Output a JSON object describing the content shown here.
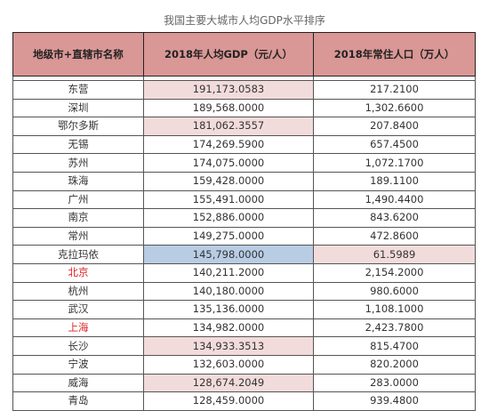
{
  "title": "我国主要大城市人均GDP水平排序",
  "headers": [
    "地级市+直辖市名称",
    "2018年人均GDP（元/人）",
    "2018年常住人口（万人）"
  ],
  "colors": {
    "header_bg": "#d99795",
    "pink_highlight": "#f2dcdb",
    "blue_highlight": "#b8cce4",
    "red_text": "#e02020"
  },
  "rows": [
    {
      "city": "东营",
      "gdp": "191,173.0583",
      "pop": "217.2100",
      "gdp_hl": "pink"
    },
    {
      "city": "深圳",
      "gdp": "189,568.0000",
      "pop": "1,302.6600"
    },
    {
      "city": "鄂尔多斯",
      "gdp": "181,062.3557",
      "pop": "207.8400",
      "gdp_hl": "pink"
    },
    {
      "city": "无锡",
      "gdp": "174,269.5900",
      "pop": "657.4500"
    },
    {
      "city": "苏州",
      "gdp": "174,075.0000",
      "pop": "1,072.1700"
    },
    {
      "city": "珠海",
      "gdp": "159,428.0000",
      "pop": "189.1100"
    },
    {
      "city": "广州",
      "gdp": "155,491.0000",
      "pop": "1,490.4400"
    },
    {
      "city": "南京",
      "gdp": "152,886.0000",
      "pop": "843.6200"
    },
    {
      "city": "常州",
      "gdp": "149,275.0000",
      "pop": "472.8600"
    },
    {
      "city": "克拉玛依",
      "gdp": "145,798.0000",
      "pop": "61.5989",
      "gdp_hl": "blue",
      "pop_hl": "pink"
    },
    {
      "city": "北京",
      "gdp": "140,211.2000",
      "pop": "2,154.2000",
      "city_red": true
    },
    {
      "city": "杭州",
      "gdp": "140,180.0000",
      "pop": "980.6000"
    },
    {
      "city": "武汉",
      "gdp": "135,136.0000",
      "pop": "1,108.1000"
    },
    {
      "city": "上海",
      "gdp": "134,982.0000",
      "pop": "2,423.7800",
      "city_red": true
    },
    {
      "city": "长沙",
      "gdp": "134,933.3513",
      "pop": "815.4700",
      "gdp_hl": "pink"
    },
    {
      "city": "宁波",
      "gdp": "132,603.0000",
      "pop": "820.2000"
    },
    {
      "city": "威海",
      "gdp": "128,674.2049",
      "pop": "283.0000",
      "gdp_hl": "pink"
    },
    {
      "city": "青岛",
      "gdp": "128,459.0000",
      "pop": "939.4800"
    }
  ]
}
